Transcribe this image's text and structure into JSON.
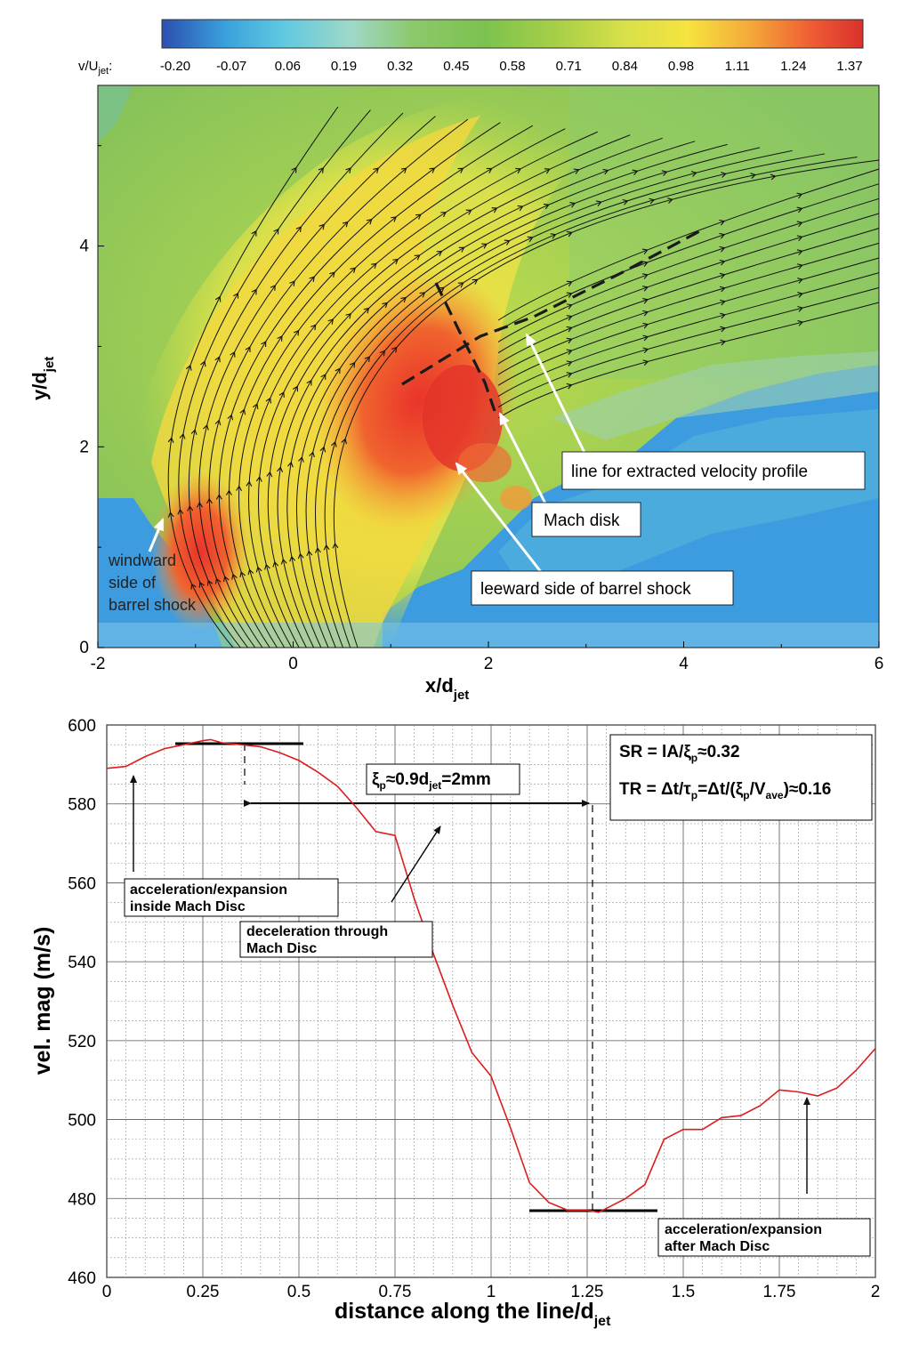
{
  "colorbar": {
    "label_main": "v/U",
    "label_sub": "jet",
    "label_suffix": ":",
    "tick_labels": [
      "-0.20",
      "-0.07",
      "0.06",
      "0.19",
      "0.32",
      "0.45",
      "0.58",
      "0.71",
      "0.84",
      "0.98",
      "1.11",
      "1.24",
      "1.37"
    ],
    "stops": [
      "#2b4fb0",
      "#3aa0dc",
      "#5ec8e0",
      "#9fd8c8",
      "#8cc86a",
      "#7cc24f",
      "#a6cf47",
      "#d7e04a",
      "#f6e43f",
      "#f4a83a",
      "#ee5a34",
      "#d9312c"
    ]
  },
  "contour_plot": {
    "ylabel_main": "y/d",
    "ylabel_sub": "jet",
    "xlabel_main": "x/d",
    "xlabel_sub": "jet",
    "x_ticks": [
      "-2",
      "0",
      "2",
      "4",
      "6"
    ],
    "y_ticks": [
      "0",
      "2",
      "4"
    ],
    "annotations": {
      "windward": [
        "windward",
        "side of",
        "barrel shock"
      ],
      "line_profile": "line for extracted velocity profile",
      "mach_disk": "Mach disk",
      "leeward": "leeward side of barrel shock"
    }
  },
  "chart_data": [
    {
      "type": "heatmap",
      "title": "",
      "xlabel": "x/d_jet",
      "ylabel": "y/d_jet",
      "xlim": [
        -2,
        6
      ],
      "ylim": [
        0,
        5.6
      ],
      "colorbar_label": "v/U_jet",
      "colorbar_range": [
        -0.2,
        1.37
      ],
      "colorbar_ticks": [
        -0.2,
        -0.07,
        0.06,
        0.19,
        0.32,
        0.45,
        0.58,
        0.71,
        0.84,
        0.98,
        1.11,
        1.24,
        1.37
      ]
    },
    {
      "type": "line",
      "title": "",
      "xlabel": "distance along the line/d_jet",
      "ylabel": "vel. mag (m/s)",
      "xlim": [
        0,
        2
      ],
      "ylim": [
        460,
        600
      ],
      "grid": true,
      "x": [
        0,
        0.05,
        0.1,
        0.15,
        0.2,
        0.25,
        0.27,
        0.3,
        0.35,
        0.4,
        0.45,
        0.5,
        0.55,
        0.6,
        0.65,
        0.7,
        0.75,
        0.8,
        0.85,
        0.9,
        0.95,
        1.0,
        1.05,
        1.1,
        1.15,
        1.2,
        1.25,
        1.28,
        1.3,
        1.35,
        1.4,
        1.45,
        1.5,
        1.55,
        1.6,
        1.65,
        1.7,
        1.75,
        1.8,
        1.85,
        1.9,
        1.95,
        2.0
      ],
      "y": [
        589,
        589.5,
        592,
        594,
        595,
        596,
        596.3,
        595.5,
        595,
        594.5,
        593,
        591,
        588,
        584.5,
        579,
        573,
        572,
        556,
        542,
        529,
        517,
        511,
        498,
        484,
        479,
        477,
        477,
        476.5,
        477.5,
        480,
        483.5,
        495,
        497.5,
        497.5,
        500.5,
        501,
        503.5,
        507.5,
        507,
        506,
        508,
        512.5,
        518
      ]
    }
  ],
  "line_chart": {
    "ylabel": "vel. mag (m/s)",
    "xlabel_main": "distance along the line/d",
    "xlabel_sub": "jet",
    "x_ticks": [
      "0",
      "0.25",
      "0.5",
      "0.75",
      "1",
      "1.25",
      "1.5",
      "1.75",
      "2"
    ],
    "y_ticks": [
      "460",
      "480",
      "500",
      "520",
      "540",
      "560",
      "580",
      "600"
    ],
    "box_sr": {
      "prefix": "SR =  lA/ξ",
      "sub": "p",
      "suffix": "≈0.32"
    },
    "box_tr": {
      "prefix": "TR = Δt/τ",
      "sub1": "p",
      "mid": "=Δt/(ξ",
      "sub2": "p",
      "mid2": "/V",
      "sub3": "ave",
      "suffix": ")≈0.16"
    },
    "xi_label": {
      "prefix": "ξ",
      "sub1": "p",
      "mid": "≈0.9d",
      "sub2": "jet",
      "suffix": "=2mm"
    },
    "annot_inside": [
      "acceleration/expansion",
      "inside Mach Disc"
    ],
    "annot_decel": [
      "deceleration through",
      "Mach Disc"
    ],
    "annot_after": [
      "acceleration/expansion",
      "after Mach Disc"
    ]
  },
  "colors": {
    "curve": "#dd1c1c",
    "streamline": "#111111",
    "dashed_line": "#222222",
    "arrow_white": "#ffffff"
  }
}
